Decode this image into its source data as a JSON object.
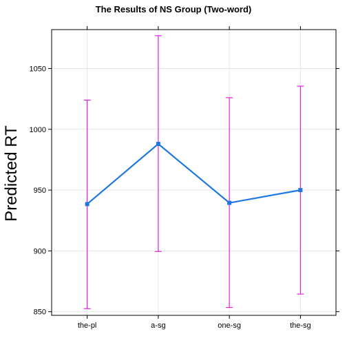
{
  "chart_data": {
    "type": "line",
    "title": "The Results of NS Group (Two-word)",
    "xlabel": "",
    "ylabel": "Predicted RT",
    "categories": [
      "the-pl",
      "a-sg",
      "one-sg",
      "the-sg"
    ],
    "series": [
      {
        "values": [
          938.5,
          988,
          939.5,
          950
        ],
        "lower": [
          852.5,
          899.5,
          853.5,
          864.5
        ],
        "upper": [
          1024,
          1077,
          1026,
          1035.5
        ]
      }
    ],
    "ylim": [
      847,
      1082
    ],
    "yticks": [
      850,
      900,
      950,
      1000,
      1050
    ],
    "grid": true,
    "colors": {
      "line": "#1f78e0",
      "errorbar": "#e020e0",
      "grid": "#e6e6e6",
      "axis": "#000000"
    }
  }
}
